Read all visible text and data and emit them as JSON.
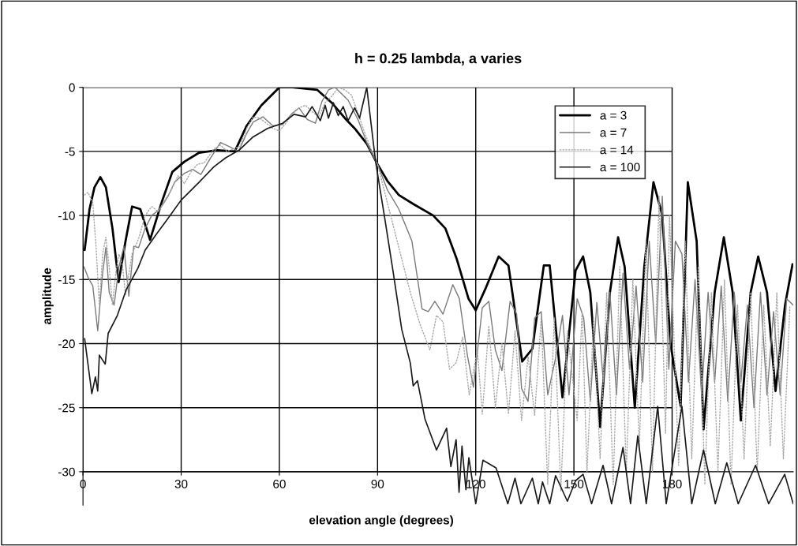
{
  "chart_data": {
    "type": "line",
    "title": "h = 0.25 lambda, a varies",
    "xlabel": "elevation angle (degrees)",
    "ylabel": "amplitude",
    "xlim": [
      0,
      217
    ],
    "ylim": [
      -32.6,
      0
    ],
    "xticks": [
      0,
      30,
      60,
      90,
      120,
      150,
      180
    ],
    "yticks": [
      0,
      -5,
      -10,
      -15,
      -20,
      -25,
      -30
    ],
    "grid": true,
    "legend": "top right",
    "marker": "none",
    "series": [
      {
        "name": "a = 3",
        "color": "#000000",
        "line_style": "solid",
        "x": [
          0.5,
          2,
          3.5,
          5.3,
          7,
          9,
          10.9,
          13,
          15,
          17.5,
          20.5,
          24,
          27.3,
          31,
          35.5,
          41,
          46.4,
          50,
          54.5,
          60,
          64,
          68,
          71.6,
          76,
          80,
          83,
          86.7,
          90,
          93,
          96.5,
          100.9,
          107,
          110.7,
          114.2,
          117.8,
          120,
          123,
          127,
          130,
          134.2,
          137.3,
          140.8,
          142.6,
          146.5,
          150.5,
          152.8,
          155,
          158,
          161,
          163.5,
          165.5,
          168.6,
          171.5,
          174.3,
          177,
          179.5,
          182.6,
          184.8,
          187.5,
          189.6,
          193,
          195.8,
          198.5,
          201,
          204,
          206.3,
          209,
          211.6,
          214.5,
          216.8
        ],
        "values": [
          -12.7,
          -9.5,
          -7.8,
          -7.0,
          -7.8,
          -11,
          -15.2,
          -12,
          -9.3,
          -9.5,
          -11.9,
          -9,
          -6.6,
          -5.8,
          -5.1,
          -4.9,
          -5,
          -3,
          -1.4,
          0,
          0,
          -0.1,
          -0.2,
          -1.2,
          -2.4,
          -3.2,
          -4.4,
          -6,
          -7.3,
          -8.4,
          -9.1,
          -10,
          -11,
          -13.4,
          -16.5,
          -17.4,
          -15.7,
          -13.2,
          -13.9,
          -21.4,
          -20.4,
          -13.9,
          -13.9,
          -24.2,
          -14.3,
          -13.2,
          -16,
          -26.5,
          -16,
          -11.7,
          -14,
          -25,
          -14,
          -7.4,
          -10,
          -20,
          -24.9,
          -7.4,
          -12,
          -26.7,
          -16,
          -11.7,
          -16,
          -26,
          -16,
          -13.2,
          -16,
          -23.7,
          -17,
          -13.8
        ]
      },
      {
        "name": "a = 7",
        "color": "#7a7a7a",
        "line_style": "solid",
        "x": [
          0.3,
          1.5,
          3,
          4.5,
          6,
          7,
          8,
          9.5,
          11,
          12.5,
          14,
          15.5,
          17,
          19,
          21,
          23.5,
          26,
          28,
          31,
          33.5,
          36,
          39,
          42,
          44.5,
          47.5,
          50,
          52,
          55,
          58,
          61,
          64,
          66,
          68.5,
          71,
          73,
          75,
          77,
          79,
          81,
          84,
          87,
          90,
          93,
          96.5,
          100.5,
          103.6,
          105.5,
          107.5,
          110,
          113,
          115,
          117.5,
          119.3,
          122,
          124,
          126,
          128,
          130.5,
          132.5,
          134,
          136,
          138,
          140,
          142,
          144.5,
          146.5,
          148.5,
          151,
          153,
          155,
          157,
          159,
          161,
          163,
          165,
          167,
          169,
          171,
          173,
          175,
          177,
          179,
          181,
          183,
          185,
          187,
          189,
          191,
          193,
          195,
          197,
          199,
          201,
          203,
          205,
          207,
          209,
          211,
          213,
          215,
          217
        ],
        "values": [
          -14,
          -14.8,
          -15.5,
          -19,
          -14.5,
          -12.5,
          -16,
          -17,
          -14,
          -12.4,
          -16.3,
          -12.4,
          -12.5,
          -11,
          -10,
          -9.5,
          -8.5,
          -7.4,
          -6.7,
          -6.4,
          -6.8,
          -5.5,
          -4.3,
          -4.6,
          -5,
          -3.6,
          -2.7,
          -2.3,
          -3,
          -2.9,
          -2,
          -1.6,
          -2.5,
          -2.8,
          -1.1,
          -0.2,
          0,
          -0.5,
          -1,
          -2.5,
          -4.5,
          -6,
          -8,
          -9.5,
          -12,
          -17.3,
          -17.5,
          -16.7,
          -17.7,
          -15.4,
          -16.5,
          -21,
          -23.4,
          -17.2,
          -16.7,
          -20.5,
          -22.1,
          -16.7,
          -17.7,
          -23.5,
          -24.5,
          -18,
          -17.5,
          -24,
          -21,
          -17.8,
          -24,
          -16.5,
          -18,
          -24.5,
          -16.8,
          -23,
          -16,
          -24,
          -14.5,
          -22,
          -15.5,
          -23,
          -12,
          -20,
          -8.5,
          -22,
          -12,
          -13,
          -23,
          -15,
          -24,
          -16,
          -23,
          -15.5,
          -24.5,
          -16,
          -23,
          -17,
          -25,
          -16,
          -24,
          -17.5,
          -24,
          -16.5,
          -17
        ]
      },
      {
        "name": "a = 14",
        "color": "#a8a8a8",
        "line_style": "dotted",
        "x": [
          0.5,
          1.5,
          3,
          4,
          5,
          6,
          7,
          8,
          9,
          10,
          11,
          12,
          13,
          15,
          17,
          19,
          21,
          23,
          25,
          27,
          29,
          31,
          33,
          35,
          37,
          40,
          42,
          44,
          46,
          48,
          50,
          52,
          54,
          56,
          58,
          60,
          62,
          64,
          66,
          68,
          70,
          72,
          74,
          76,
          78,
          80,
          82,
          84,
          86,
          88,
          90,
          94,
          97,
          100,
          103,
          106,
          108,
          110,
          112,
          114,
          116,
          118,
          120.5,
          122,
          124,
          126,
          128,
          130,
          132,
          134,
          136,
          138,
          140,
          142,
          144,
          146,
          148,
          151,
          152.5,
          154,
          156,
          158,
          160,
          162,
          164,
          166,
          168,
          170,
          172,
          174,
          176,
          178,
          179.2,
          182,
          184,
          186,
          188,
          190,
          192,
          194,
          196,
          198,
          200,
          202,
          204,
          206,
          208,
          210,
          212,
          214,
          216
        ],
        "values": [
          -8.4,
          -8.2,
          -9,
          -12.5,
          -17,
          -13,
          -11.7,
          -14,
          -17,
          -14.5,
          -13,
          -13.8,
          -16.2,
          -13,
          -11.8,
          -10,
          -9.3,
          -9.7,
          -8.8,
          -8,
          -6.9,
          -7.5,
          -6.6,
          -6,
          -5.9,
          -4.8,
          -4.5,
          -5,
          -4.8,
          -4.6,
          -3.2,
          -2.3,
          -2.4,
          -2.8,
          -3.2,
          -3.4,
          -2.8,
          -2.1,
          -1.6,
          -1.4,
          -1.9,
          -2.3,
          -1.2,
          -0.7,
          0,
          -0.2,
          -0.6,
          -2,
          -3.5,
          -4.8,
          -6,
          -10,
          -13,
          -16,
          -18.5,
          -20.5,
          -17.8,
          -18.3,
          -22,
          -21.5,
          -19.5,
          -24,
          -20.5,
          -25.5,
          -18.6,
          -25,
          -20,
          -25.5,
          -19,
          -26,
          -21,
          -25.6,
          -18,
          -31,
          -18,
          -31.5,
          -19,
          -26,
          -17.5,
          -30,
          -18,
          -29,
          -16,
          -31,
          -14,
          -30,
          -15,
          -28,
          -12,
          -30,
          -8.5,
          -27,
          -10,
          -29.5,
          -12,
          -29,
          -14,
          -31,
          -16,
          -30,
          -15,
          -31,
          -17,
          -29,
          -16,
          -30,
          -17,
          -28,
          -16,
          -29,
          -17
        ]
      },
      {
        "name": "a = 100",
        "color": "#1a1a1a",
        "line_style": "solid",
        "x": [
          0.5,
          2.7,
          3.8,
          4.5,
          5,
          6.8,
          7.7,
          10.5,
          13.2,
          16.8,
          19,
          22.3,
          25.5,
          30,
          35.5,
          40,
          43.6,
          47.7,
          51.8,
          56.4,
          61,
          64.5,
          68,
          70,
          72.5,
          74,
          75,
          76.5,
          78,
          79.5,
          81,
          83,
          84.5,
          86.7,
          89.4,
          92,
          94.7,
          97.4,
          100,
          100.9,
          102.2,
          104.5,
          108,
          111.1,
          112.4,
          114,
          114.9,
          115.8,
          117,
          117.9,
          120,
          122.2,
          126.2,
          129.8,
          132,
          133.8,
          137.3,
          139.1,
          140.4,
          142.6,
          144.4,
          148,
          150.5,
          152.8,
          155.4,
          158.9,
          161.5,
          165,
          167.3,
          169.5,
          172.1,
          175.6,
          178.2,
          183,
          186,
          189.6,
          193.2,
          196.7,
          200.2,
          205.5,
          209.5,
          214.4,
          217
        ],
        "values": [
          -19.6,
          -23.9,
          -22.6,
          -23.7,
          -20.9,
          -21.6,
          -19.2,
          -17.8,
          -15.8,
          -14.1,
          -12.7,
          -11.5,
          -10.4,
          -8.8,
          -7.4,
          -6.2,
          -5.5,
          -4.9,
          -3.9,
          -3.2,
          -2.8,
          -2.1,
          -2.3,
          -1.5,
          -2.6,
          -1.4,
          -2.4,
          -1.2,
          -2.2,
          -1.5,
          -2.6,
          -1.6,
          -2.4,
          0,
          -5.8,
          -9.9,
          -14.3,
          -18.9,
          -21.5,
          -23.3,
          -22.9,
          -25.9,
          -28.3,
          -26.6,
          -29.6,
          -27.5,
          -31.6,
          -28,
          -31.4,
          -28.9,
          -32.5,
          -29.1,
          -29.7,
          -32.5,
          -30.5,
          -32.5,
          -30.5,
          -32.5,
          -30.8,
          -32.5,
          -30.3,
          -32.3,
          -30.7,
          -30.2,
          -32.5,
          -29.5,
          -32.5,
          -28.1,
          -32.5,
          -27.2,
          -32.5,
          -24.9,
          -32.5,
          -24.9,
          -32.5,
          -28.3,
          -32.5,
          -29.3,
          -32.5,
          -29.5,
          -32.5,
          -30.2,
          -32.5
        ]
      }
    ]
  }
}
